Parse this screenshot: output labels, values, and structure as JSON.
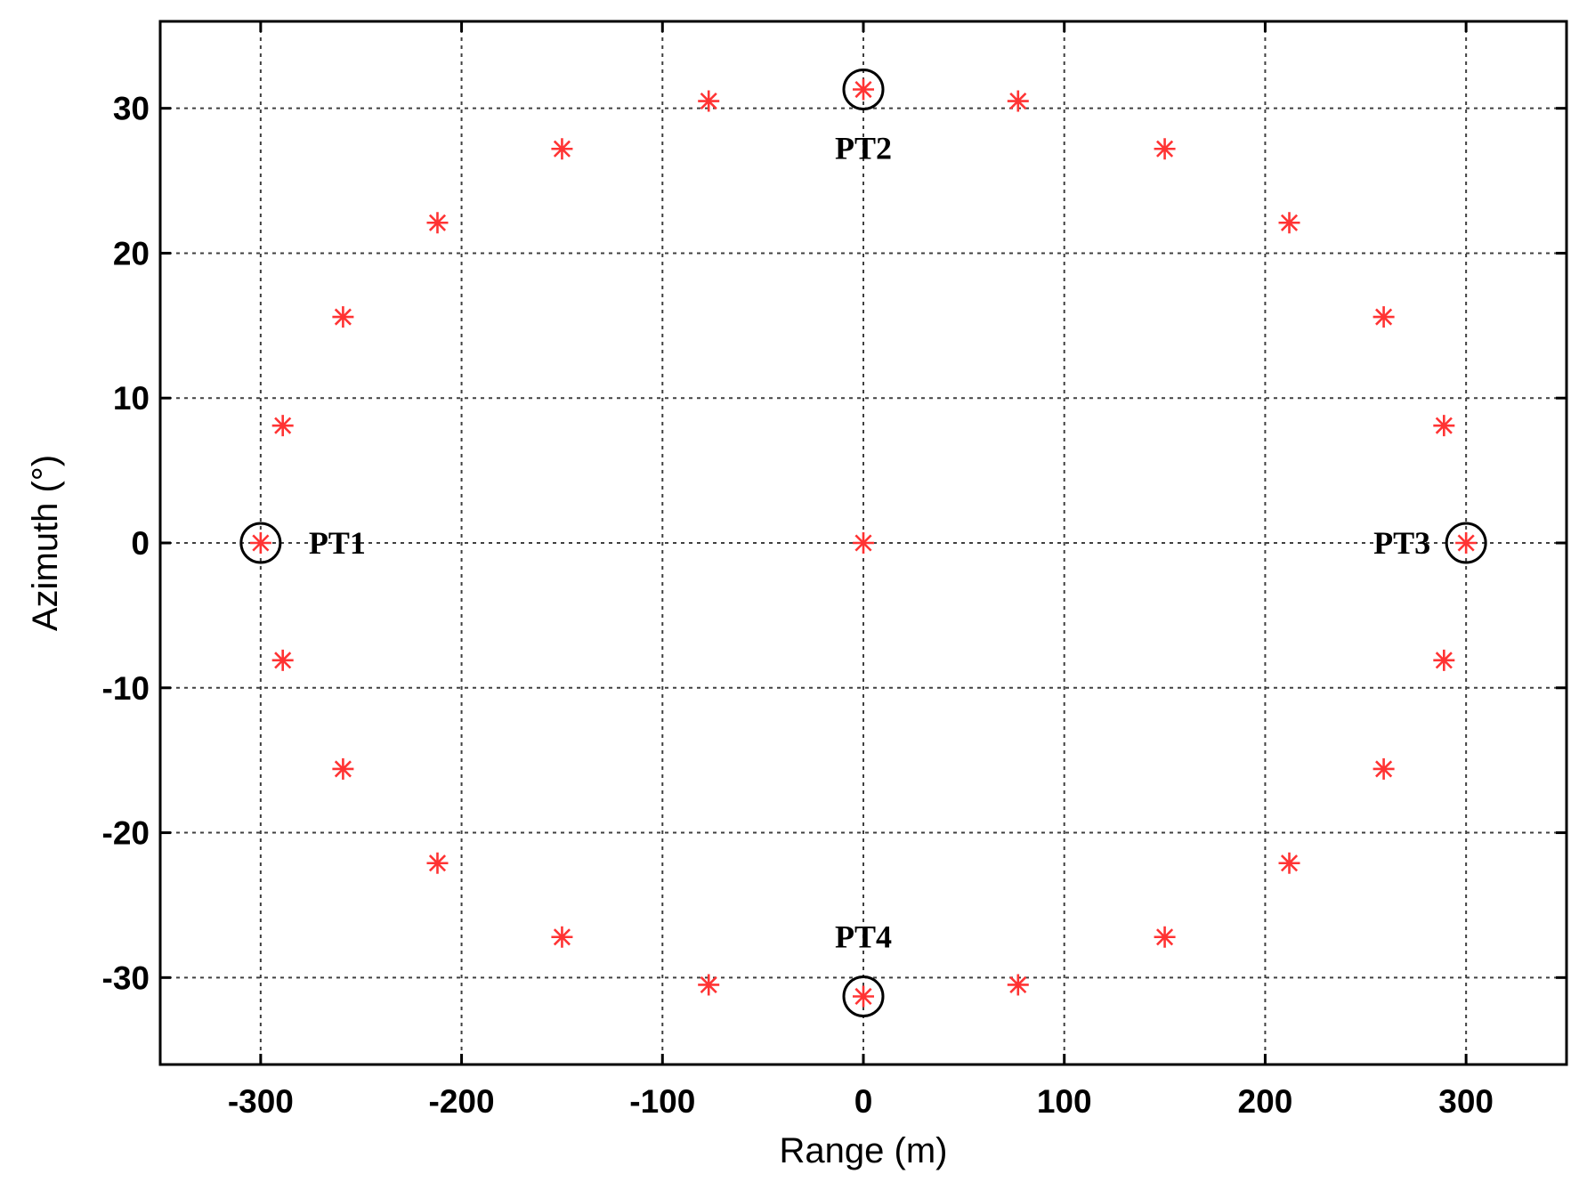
{
  "chart_data": {
    "type": "scatter",
    "xlabel": "Range (m)",
    "ylabel": "Azimuth (°)",
    "xlim": [
      -350,
      350
    ],
    "ylim": [
      -36,
      36
    ],
    "xticks": [
      -300,
      -200,
      -100,
      0,
      100,
      200,
      300
    ],
    "yticks": [
      -30,
      -20,
      -10,
      0,
      10,
      20,
      30
    ],
    "xtick_labels": [
      "-300",
      "-200",
      "-100",
      "0",
      "100",
      "200",
      "300"
    ],
    "ytick_labels": [
      "-30",
      "-20",
      "-10",
      "0",
      "10",
      "20",
      "30"
    ],
    "grid": true,
    "marker": "asterisk",
    "marker_color": "#ff3333",
    "points": [
      {
        "x": 0,
        "y": 0
      },
      {
        "x": -300,
        "y": 0
      },
      {
        "x": 300,
        "y": 0
      },
      {
        "x": 0,
        "y": 31.3
      },
      {
        "x": 0,
        "y": -31.3
      },
      {
        "x": 77,
        "y": 30.5
      },
      {
        "x": -77,
        "y": 30.5
      },
      {
        "x": 77,
        "y": -30.5
      },
      {
        "x": -77,
        "y": -30.5
      },
      {
        "x": 150,
        "y": 27.2
      },
      {
        "x": -150,
        "y": 27.2
      },
      {
        "x": 150,
        "y": -27.2
      },
      {
        "x": -150,
        "y": -27.2
      },
      {
        "x": 212,
        "y": 22.1
      },
      {
        "x": -212,
        "y": 22.1
      },
      {
        "x": 212,
        "y": -22.1
      },
      {
        "x": -212,
        "y": -22.1
      },
      {
        "x": 259,
        "y": 15.6
      },
      {
        "x": -259,
        "y": 15.6
      },
      {
        "x": 259,
        "y": -15.6
      },
      {
        "x": -259,
        "y": -15.6
      },
      {
        "x": 289,
        "y": 8.1
      },
      {
        "x": -289,
        "y": 8.1
      },
      {
        "x": 289,
        "y": -8.1
      },
      {
        "x": -289,
        "y": -8.1
      }
    ],
    "annotations": [
      {
        "label": "PT1",
        "x": -300,
        "y": 0,
        "circled": true,
        "label_side": "right"
      },
      {
        "label": "PT2",
        "x": 0,
        "y": 31.3,
        "circled": true,
        "label_side": "below"
      },
      {
        "label": "PT3",
        "x": 300,
        "y": 0,
        "circled": true,
        "label_side": "left"
      },
      {
        "label": "PT4",
        "x": 0,
        "y": -31.3,
        "circled": true,
        "label_side": "above"
      }
    ]
  }
}
